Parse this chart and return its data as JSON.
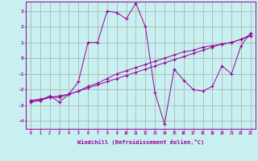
{
  "xlabel": "Windchill (Refroidissement éolien,°C)",
  "bg_color": "#c8f0f0",
  "line_color": "#990099",
  "grid_color": "#aaaaaa",
  "ylim": [
    -4.5,
    3.6
  ],
  "xlim": [
    -0.5,
    23.5
  ],
  "yticks": [
    -4,
    -3,
    -2,
    -1,
    0,
    1,
    2,
    3
  ],
  "xticks": [
    0,
    1,
    2,
    3,
    4,
    5,
    6,
    7,
    8,
    9,
    10,
    11,
    12,
    13,
    14,
    15,
    16,
    17,
    18,
    19,
    20,
    21,
    22,
    23
  ],
  "series1_x": [
    0,
    1,
    2,
    3,
    4,
    5,
    6,
    7,
    8,
    9,
    10,
    11,
    12,
    13,
    14,
    15,
    16,
    17,
    18,
    19,
    20,
    21,
    22,
    23
  ],
  "series1_y": [
    -2.7,
    -2.7,
    -2.4,
    -2.8,
    -2.3,
    -1.5,
    1.0,
    1.0,
    3.0,
    2.9,
    2.5,
    3.5,
    2.0,
    -2.2,
    -4.2,
    -0.7,
    -1.4,
    -2.0,
    -2.1,
    -1.8,
    -0.5,
    -1.0,
    0.8,
    1.6
  ],
  "series2_x": [
    0,
    1,
    2,
    3,
    4,
    5,
    6,
    7,
    8,
    9,
    10,
    11,
    12,
    13,
    14,
    15,
    16,
    17,
    18,
    19,
    20,
    21,
    22,
    23
  ],
  "series2_y": [
    -2.8,
    -2.7,
    -2.5,
    -2.5,
    -2.3,
    -2.1,
    -1.8,
    -1.6,
    -1.3,
    -1.0,
    -0.8,
    -0.6,
    -0.4,
    -0.2,
    0.0,
    0.2,
    0.4,
    0.5,
    0.7,
    0.8,
    0.9,
    1.0,
    1.2,
    1.5
  ],
  "series3_x": [
    0,
    1,
    2,
    3,
    4,
    5,
    6,
    7,
    8,
    9,
    10,
    11,
    12,
    13,
    14,
    15,
    16,
    17,
    18,
    19,
    20,
    21,
    22,
    23
  ],
  "series3_y": [
    -2.7,
    -2.6,
    -2.5,
    -2.4,
    -2.3,
    -2.1,
    -1.9,
    -1.7,
    -1.5,
    -1.3,
    -1.1,
    -0.9,
    -0.7,
    -0.5,
    -0.3,
    -0.1,
    0.1,
    0.3,
    0.5,
    0.7,
    0.9,
    1.0,
    1.2,
    1.4
  ]
}
